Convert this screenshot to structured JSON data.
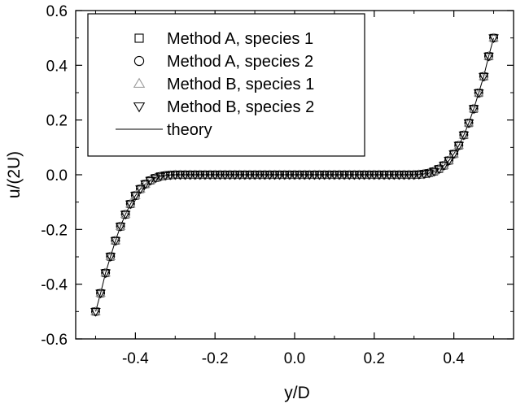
{
  "chart_data": {
    "type": "scatter",
    "xlabel": "y/D",
    "ylabel": "u/(2U)",
    "xlim": [
      -0.55,
      0.55
    ],
    "ylim": [
      -0.6,
      0.6
    ],
    "xticks": [
      -0.4,
      -0.2,
      0.0,
      0.2,
      0.4
    ],
    "xtick_labels": [
      "-0.4",
      "-0.2",
      "0.0",
      "0.2",
      "0.4"
    ],
    "yticks": [
      -0.6,
      -0.4,
      -0.2,
      0.0,
      0.2,
      0.4,
      0.6
    ],
    "ytick_labels": [
      "-0.6",
      "-0.4",
      "-0.2",
      "0.0",
      "0.2",
      "0.4",
      "0.6"
    ],
    "grid": false,
    "legend": {
      "placement": "top-left",
      "boxed": true
    },
    "x": [
      -0.5,
      -0.4875,
      -0.475,
      -0.4625,
      -0.45,
      -0.4375,
      -0.425,
      -0.4125,
      -0.4,
      -0.3875,
      -0.375,
      -0.3625,
      -0.35,
      -0.3375,
      -0.325,
      -0.3125,
      -0.3,
      -0.2875,
      -0.275,
      -0.2625,
      -0.25,
      -0.2375,
      -0.225,
      -0.2125,
      -0.2,
      -0.1875,
      -0.175,
      -0.1625,
      -0.15,
      -0.1375,
      -0.125,
      -0.1125,
      -0.1,
      -0.0875,
      -0.075,
      -0.0625,
      -0.05,
      -0.0375,
      -0.025,
      -0.0125,
      0.0,
      0.0125,
      0.025,
      0.0375,
      0.05,
      0.0625,
      0.075,
      0.0875,
      0.1,
      0.1125,
      0.125,
      0.1375,
      0.15,
      0.1625,
      0.175,
      0.1875,
      0.2,
      0.2125,
      0.225,
      0.2375,
      0.25,
      0.2625,
      0.275,
      0.2875,
      0.3,
      0.3125,
      0.325,
      0.3375,
      0.35,
      0.3625,
      0.375,
      0.3875,
      0.4,
      0.4125,
      0.425,
      0.4375,
      0.45,
      0.4625,
      0.475,
      0.4875,
      0.5
    ],
    "series": [
      {
        "name": "Method A, species 1",
        "marker": "square"
      },
      {
        "name": "Method A, species 2",
        "marker": "circle"
      },
      {
        "name": "Method B, species 1",
        "marker": "triangle-up",
        "color": "#9a9a9a"
      },
      {
        "name": "Method B, species 2",
        "marker": "triangle-down"
      },
      {
        "name": "theory",
        "marker": "line"
      }
    ],
    "y": [
      -0.5,
      -0.433,
      -0.359,
      -0.299,
      -0.241,
      -0.189,
      -0.145,
      -0.107,
      -0.076,
      -0.052,
      -0.034,
      -0.021,
      -0.012,
      -0.006,
      -0.003,
      -0.001,
      0.0,
      0.0,
      0.0,
      0.0,
      0.0,
      0.0,
      0.0,
      0.0,
      0.0,
      0.0,
      0.0,
      0.0,
      0.0,
      0.0,
      0.0,
      0.0,
      0.0,
      0.0,
      0.0,
      0.0,
      0.0,
      0.0,
      0.0,
      0.0,
      0.0,
      0.0,
      0.0,
      0.0,
      0.0,
      0.0,
      0.0,
      0.0,
      0.0,
      0.0,
      0.0,
      0.0,
      0.0,
      0.0,
      0.0,
      0.0,
      0.0,
      0.0,
      0.0,
      0.0,
      0.0,
      0.0,
      0.0,
      0.0,
      0.0,
      0.001,
      0.003,
      0.006,
      0.012,
      0.021,
      0.034,
      0.052,
      0.076,
      0.107,
      0.145,
      0.189,
      0.241,
      0.299,
      0.359,
      0.433,
      0.5
    ]
  }
}
